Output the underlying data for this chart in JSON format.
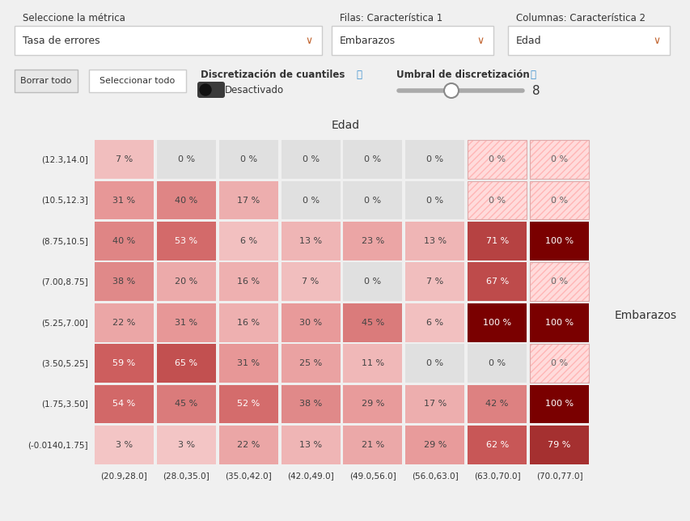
{
  "title_col": "Edad",
  "title_row": "Embarazos",
  "col_labels": [
    "(20.9,28.0]",
    "(28.0,35.0]",
    "(35.0,42.0]",
    "(42.0,49.0]",
    "(49.0,56.0]",
    "(56.0,63.0]",
    "(63.0,70.0]",
    "(70.0,77.0]"
  ],
  "row_labels": [
    "(12.3,14.0]",
    "(10.5,12.3]",
    "(8.75,10.5]",
    "(7.00,8.75]",
    "(5.25,7.00]",
    "(3.50,5.25]",
    "(1.75,3.50]",
    "(-0.0140,1.75]"
  ],
  "values": [
    [
      7,
      0,
      0,
      0,
      0,
      0,
      0,
      0
    ],
    [
      31,
      40,
      17,
      0,
      0,
      0,
      0,
      0
    ],
    [
      40,
      53,
      6,
      13,
      23,
      13,
      71,
      100
    ],
    [
      38,
      20,
      16,
      7,
      0,
      7,
      67,
      0
    ],
    [
      22,
      31,
      16,
      30,
      45,
      6,
      100,
      100
    ],
    [
      59,
      65,
      31,
      25,
      11,
      0,
      0,
      0
    ],
    [
      54,
      45,
      52,
      38,
      29,
      17,
      42,
      100
    ],
    [
      3,
      3,
      22,
      13,
      21,
      29,
      62,
      79
    ]
  ],
  "hatched": [
    [
      false,
      false,
      false,
      false,
      false,
      false,
      true,
      true
    ],
    [
      false,
      false,
      false,
      false,
      false,
      false,
      true,
      true
    ],
    [
      false,
      false,
      false,
      false,
      false,
      false,
      false,
      false
    ],
    [
      false,
      false,
      false,
      false,
      false,
      false,
      false,
      true
    ],
    [
      false,
      false,
      false,
      false,
      false,
      false,
      false,
      false
    ],
    [
      false,
      false,
      false,
      false,
      false,
      false,
      false,
      true
    ],
    [
      false,
      false,
      false,
      false,
      false,
      false,
      false,
      false
    ],
    [
      false,
      false,
      false,
      false,
      false,
      false,
      false,
      false
    ]
  ],
  "ui": {
    "label1": "Seleccione la métrica",
    "dd1": "Tasa de errores",
    "label2": "Filas: Característica 1",
    "dd2": "Embarazos",
    "label3": "Columnas: Característica 2",
    "dd3": "Edad",
    "btn1": "Borrar todo",
    "btn2": "Seleccionar todo",
    "toggle_lbl": "Discretización de cuantiles",
    "toggle_val": "Desactivado",
    "slider_lbl": "Umbral de discretización",
    "slider_num": "8"
  },
  "bg": "#f0f0f0",
  "white": "#ffffff",
  "zero_color": "#e0e0e0",
  "border_color": "#cccccc",
  "text_dark": "#333333",
  "text_mid": "#555555",
  "blue_info": "#3a8fcf"
}
